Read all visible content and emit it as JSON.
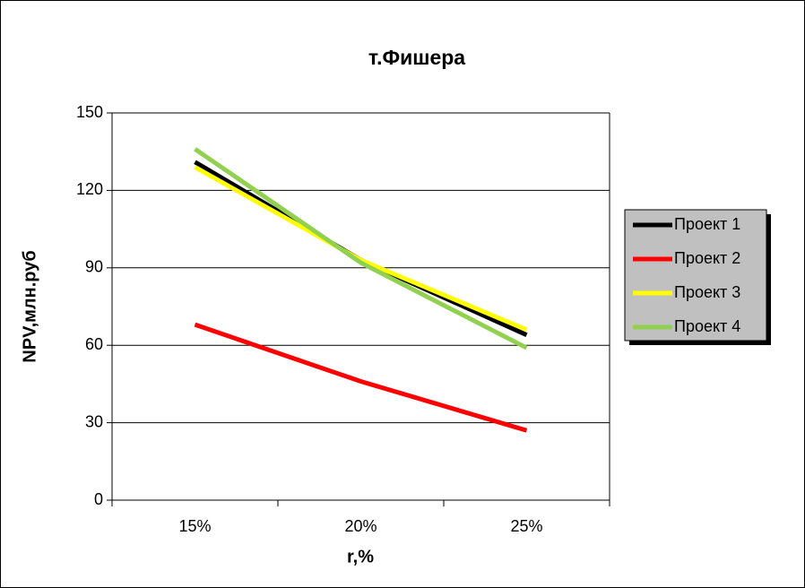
{
  "chart_data": {
    "type": "line",
    "title": "т.Фишера",
    "x_label": "r,%",
    "y_label": "NPV,млн.руб",
    "categories": [
      "15%",
      "20%",
      "25%"
    ],
    "series": [
      {
        "name": "Проект 1",
        "color": "#000000",
        "values": [
          131,
          93,
          64
        ]
      },
      {
        "name": "Проект 2",
        "color": "#ff0000",
        "values": [
          68,
          46,
          27
        ]
      },
      {
        "name": "Проект 3",
        "color": "#ffff00",
        "values": [
          129,
          93,
          66
        ]
      },
      {
        "name": "Проект 4",
        "color": "#92d050",
        "values": [
          136,
          92,
          59
        ]
      }
    ],
    "ylim": [
      0,
      150
    ],
    "yticks": [
      0,
      30,
      60,
      90,
      120,
      150
    ],
    "grid": true,
    "legend": "right"
  }
}
